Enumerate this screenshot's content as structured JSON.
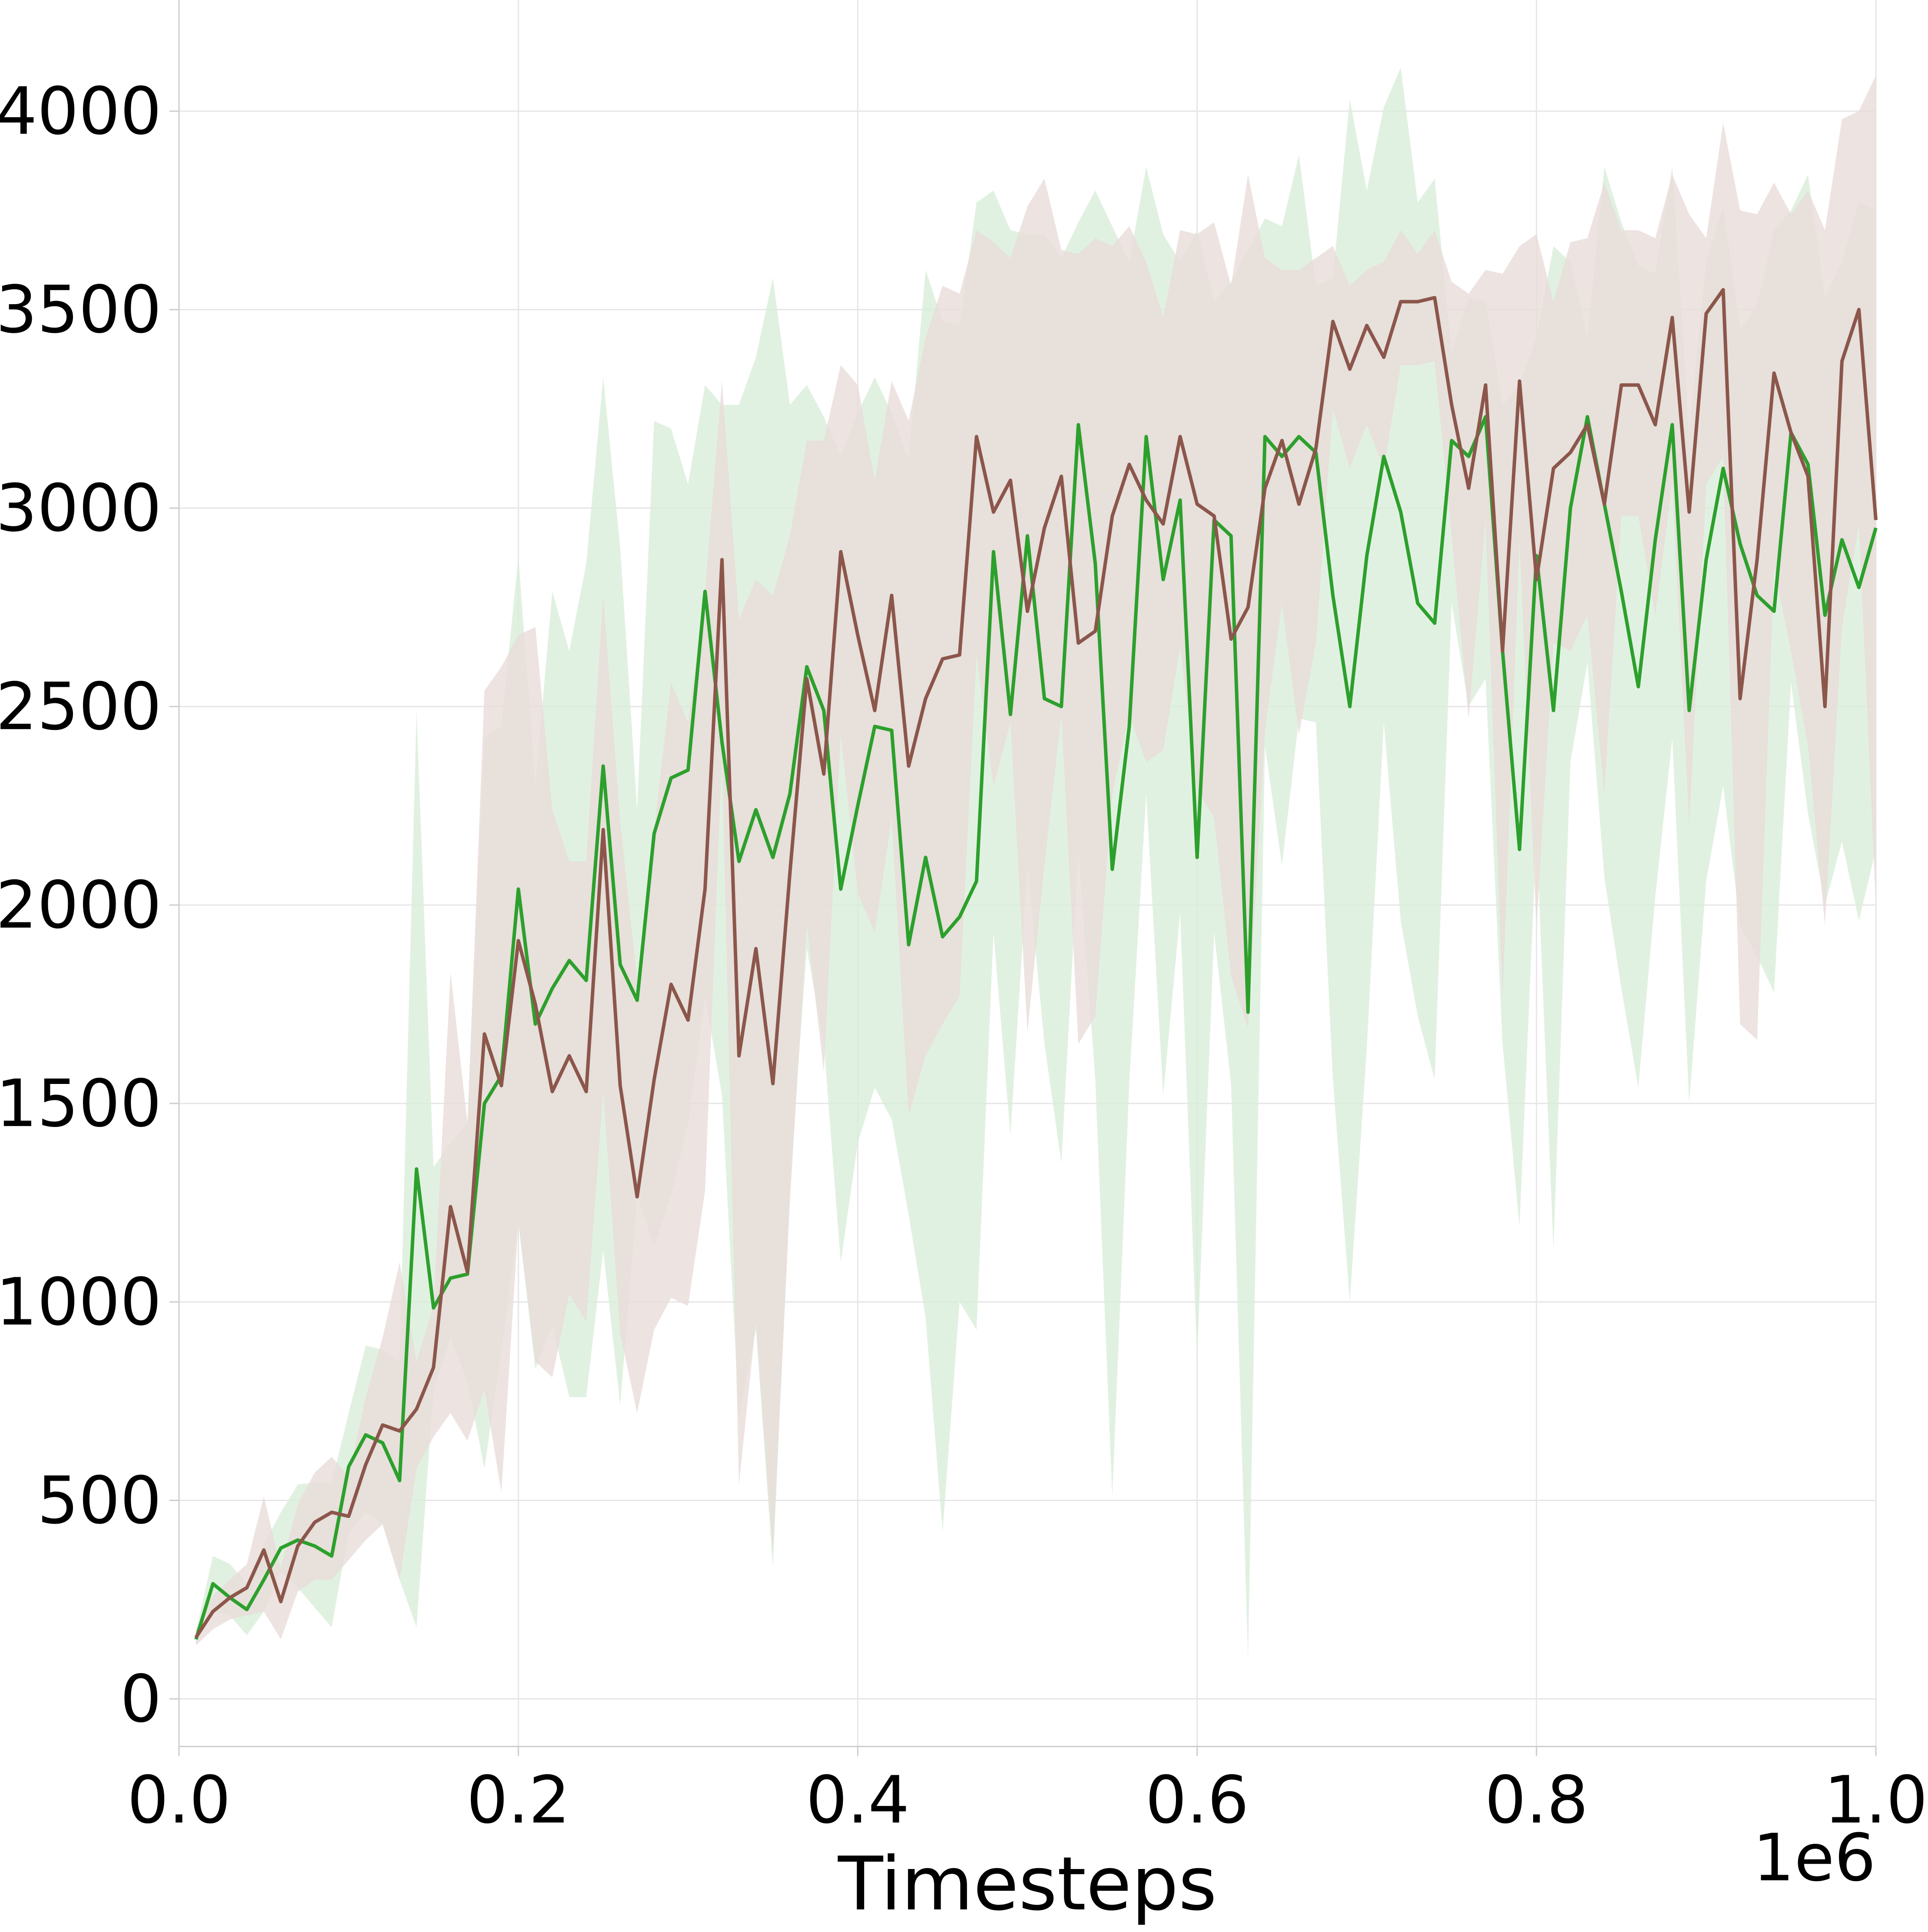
{
  "chart_data": {
    "type": "line",
    "title": "",
    "xlabel": "Timesteps",
    "ylabel": "",
    "x_offset_label": "1e6",
    "xlim": [
      0.0,
      1.0
    ],
    "ylim": [
      -120,
      4280
    ],
    "x_ticks": [
      0.0,
      0.2,
      0.4,
      0.6,
      0.8,
      1.0
    ],
    "x_tick_labels": [
      "0.0",
      "0.2",
      "0.4",
      "0.6",
      "0.8",
      "1.0"
    ],
    "y_ticks": [
      0,
      500,
      1000,
      1500,
      2000,
      2500,
      3000,
      3500,
      4000
    ],
    "y_tick_labels": [
      "0",
      "500",
      "1000",
      "1500",
      "2000",
      "2500",
      "3000",
      "3500",
      "4000"
    ],
    "grid": true,
    "legend": "none",
    "x": [
      0.01,
      0.02,
      0.03,
      0.04,
      0.05,
      0.06,
      0.07,
      0.08,
      0.09,
      0.1,
      0.11,
      0.12,
      0.13,
      0.14,
      0.15,
      0.16,
      0.17,
      0.18,
      0.19,
      0.2,
      0.21,
      0.22,
      0.23,
      0.24,
      0.25,
      0.26,
      0.27,
      0.28,
      0.29,
      0.3,
      0.31,
      0.32,
      0.33,
      0.34,
      0.35,
      0.36,
      0.37,
      0.38,
      0.39,
      0.4,
      0.41,
      0.42,
      0.43,
      0.44,
      0.45,
      0.46,
      0.47,
      0.48,
      0.49,
      0.5,
      0.51,
      0.52,
      0.53,
      0.54,
      0.55,
      0.56,
      0.57,
      0.58,
      0.59,
      0.6,
      0.61,
      0.62,
      0.63,
      0.64,
      0.65,
      0.66,
      0.67,
      0.68,
      0.69,
      0.7,
      0.71,
      0.72,
      0.73,
      0.74,
      0.75,
      0.76,
      0.77,
      0.78,
      0.79,
      0.8,
      0.81,
      0.82,
      0.83,
      0.84,
      0.85,
      0.86,
      0.87,
      0.88,
      0.89,
      0.9,
      0.91,
      0.92,
      0.93,
      0.94,
      0.95,
      0.96,
      0.97,
      0.98,
      0.99,
      1.0
    ],
    "series": [
      {
        "color": "#2ca02c",
        "band_color": "#d9eed9",
        "values": [
          150,
          290,
          255,
          225,
          300,
          380,
          400,
          385,
          360,
          585,
          665,
          645,
          550,
          1335,
          985,
          1060,
          1070,
          1500,
          1570,
          2040,
          1700,
          1790,
          1860,
          1810,
          2350,
          1850,
          1760,
          2180,
          2320,
          2340,
          2790,
          2410,
          2110,
          2240,
          2120,
          2280,
          2600,
          2490,
          2040,
          2250,
          2450,
          2440,
          1900,
          2120,
          1920,
          1970,
          2060,
          2890,
          2480,
          2930,
          2520,
          2500,
          3210,
          2860,
          2090,
          2450,
          3180,
          2820,
          3020,
          2120,
          2970,
          2930,
          1730,
          3180,
          3130,
          3180,
          3140,
          2780,
          2500,
          2880,
          3130,
          2990,
          2760,
          2710,
          3170,
          3130,
          3230,
          2640,
          2140,
          2880,
          2490,
          3000,
          3230,
          3010,
          2790,
          2550,
          2920,
          3210,
          2490,
          2870,
          3100,
          2910,
          2780,
          2740,
          3190,
          3110,
          2730,
          2920,
          2800,
          2950
        ],
        "upper": [
          170,
          360,
          340,
          290,
          390,
          470,
          540,
          545,
          545,
          720,
          890,
          880,
          850,
          2490,
          1340,
          1400,
          1450,
          2420,
          2450,
          2880,
          2300,
          2790,
          2640,
          2860,
          3330,
          2900,
          2240,
          3220,
          3200,
          3060,
          3310,
          3260,
          3260,
          3380,
          3580,
          3260,
          3310,
          3230,
          3130,
          3240,
          3330,
          3240,
          3120,
          3600,
          3470,
          3460,
          3770,
          3800,
          3700,
          3690,
          3690,
          3630,
          3720,
          3800,
          3710,
          3620,
          3860,
          3690,
          3620,
          3700,
          3520,
          3570,
          3650,
          3730,
          3710,
          3890,
          3560,
          3580,
          4030,
          3800,
          4010,
          4110,
          3770,
          3830,
          3390,
          3530,
          3520,
          3260,
          3310,
          3430,
          3660,
          3620,
          3430,
          3860,
          3720,
          3610,
          3590,
          3860,
          3180,
          3620,
          3760,
          3450,
          3510,
          3700,
          3750,
          3840,
          3530,
          3620,
          3770,
          3750
        ],
        "lower": [
          140,
          220,
          210,
          160,
          220,
          320,
          280,
          230,
          180,
          420,
          470,
          440,
          300,
          180,
          780,
          910,
          800,
          580,
          880,
          1200,
          830,
          940,
          760,
          760,
          1130,
          740,
          1270,
          1140,
          1270,
          1450,
          1770,
          1520,
          710,
          930,
          330,
          1300,
          1890,
          1650,
          1100,
          1400,
          1540,
          1460,
          1220,
          960,
          420,
          1000,
          930,
          1930,
          1420,
          2100,
          1650,
          1350,
          2140,
          1560,
          510,
          1550,
          2280,
          1520,
          1980,
          860,
          1930,
          1550,
          100,
          2400,
          2100,
          2470,
          2460,
          1560,
          1000,
          1640,
          2460,
          1960,
          1720,
          1560,
          2760,
          2500,
          2570,
          1650,
          1190,
          2180,
          1130,
          2360,
          2610,
          2070,
          1790,
          1540,
          2020,
          2420,
          1500,
          2060,
          2300,
          1950,
          1870,
          1780,
          2560,
          2230,
          2000,
          2160,
          1960,
          2140
        ]
      },
      {
        "color": "#8c564b",
        "band_color": "#e8dcda",
        "values": [
          155,
          220,
          255,
          280,
          375,
          245,
          385,
          445,
          470,
          460,
          590,
          690,
          675,
          730,
          835,
          1240,
          1075,
          1675,
          1545,
          1910,
          1750,
          1530,
          1620,
          1530,
          2190,
          1545,
          1265,
          1560,
          1800,
          1710,
          2040,
          2870,
          1620,
          1890,
          1550,
          2080,
          2570,
          2330,
          2890,
          2680,
          2490,
          2780,
          2350,
          2520,
          2620,
          2630,
          3180,
          2990,
          3070,
          2740,
          2950,
          3080,
          2660,
          2690,
          2980,
          3110,
          3020,
          2960,
          3180,
          3010,
          2980,
          2670,
          2750,
          3050,
          3170,
          3010,
          3150,
          3470,
          3350,
          3460,
          3380,
          3520,
          3520,
          3530,
          3260,
          3050,
          3310,
          2640,
          3320,
          2820,
          3100,
          3140,
          3210,
          3010,
          3310,
          3310,
          3210,
          3480,
          2990,
          3490,
          3550,
          2520,
          2870,
          3340,
          3190,
          3080,
          2500,
          3370,
          3500,
          2970
        ],
        "upper": [
          175,
          260,
          300,
          340,
          510,
          330,
          490,
          570,
          610,
          560,
          760,
          910,
          1100,
          850,
          990,
          1830,
          1450,
          2540,
          2600,
          2680,
          2700,
          2240,
          2110,
          2110,
          2780,
          2210,
          1810,
          2190,
          2560,
          2460,
          2790,
          3320,
          2720,
          2820,
          2780,
          2930,
          3170,
          3170,
          3360,
          3310,
          3070,
          3320,
          3220,
          3430,
          3560,
          3540,
          3700,
          3670,
          3630,
          3760,
          3830,
          3650,
          3640,
          3680,
          3660,
          3710,
          3620,
          3480,
          3700,
          3690,
          3720,
          3560,
          3840,
          3630,
          3600,
          3600,
          3630,
          3660,
          3560,
          3600,
          3620,
          3700,
          3640,
          3700,
          3570,
          3540,
          3600,
          3590,
          3660,
          3690,
          3520,
          3670,
          3680,
          3820,
          3700,
          3700,
          3680,
          3840,
          3740,
          3680,
          3970,
          3750,
          3740,
          3820,
          3740,
          3800,
          3700,
          3980,
          4000,
          4090
        ],
        "lower": [
          135,
          175,
          200,
          210,
          220,
          150,
          270,
          300,
          300,
          350,
          400,
          440,
          300,
          580,
          660,
          720,
          650,
          780,
          520,
          1200,
          850,
          810,
          1020,
          950,
          1530,
          920,
          720,
          930,
          1010,
          990,
          1280,
          2380,
          540,
          950,
          370,
          1250,
          1950,
          1580,
          2430,
          2030,
          1930,
          2220,
          1470,
          1620,
          1700,
          1770,
          2630,
          2300,
          2460,
          1680,
          2100,
          2480,
          1650,
          1720,
          2280,
          2480,
          2360,
          2390,
          2650,
          2290,
          2220,
          1820,
          1690,
          2440,
          2760,
          2430,
          2660,
          3250,
          3100,
          3210,
          3100,
          3360,
          3360,
          3370,
          2930,
          2470,
          2970,
          1760,
          2920,
          1940,
          2660,
          2640,
          2730,
          2280,
          2980,
          2980,
          2730,
          3060,
          2200,
          3060,
          3130,
          1700,
          1660,
          2850,
          2640,
          2400,
          1950,
          2700,
          2960,
          2000
        ]
      }
    ]
  }
}
